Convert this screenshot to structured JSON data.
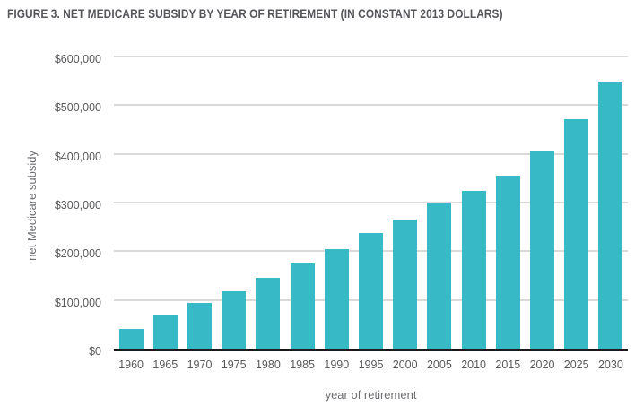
{
  "figure": {
    "title": "FIGURE 3. NET MEDICARE SUBSIDY BY YEAR OF RETIREMENT (IN CONSTANT 2013 DOLLARS)"
  },
  "colors": {
    "bar": "#38b9c6",
    "gridline": "#d9d9d9",
    "axis_line": "#1a1a1a",
    "tick_label": "#58595b",
    "axis_title": "#6d6e71",
    "figure_title": "#55565a"
  },
  "chart_data": {
    "type": "bar",
    "title": "FIGURE 3. NET MEDICARE SUBSIDY BY YEAR OF RETIREMENT (IN CONSTANT 2013 DOLLARS)",
    "xlabel": "year of retirement",
    "ylabel": "net Medicare subsidy",
    "categories": [
      "1960",
      "1965",
      "1970",
      "1975",
      "1980",
      "1985",
      "1990",
      "1995",
      "2000",
      "2005",
      "2010",
      "2015",
      "2020",
      "2025",
      "2030"
    ],
    "values": [
      40000,
      68000,
      93000,
      118000,
      146000,
      175000,
      205000,
      238000,
      265000,
      300000,
      324000,
      356000,
      406000,
      472000,
      549000
    ],
    "ylim": [
      0,
      600000
    ],
    "y_ticks": [
      {
        "value": 0,
        "label": "$0"
      },
      {
        "value": 100000,
        "label": "$100,000"
      },
      {
        "value": 200000,
        "label": "$200,000"
      },
      {
        "value": 300000,
        "label": "$300,000"
      },
      {
        "value": 400000,
        "label": "$400,000"
      },
      {
        "value": 500000,
        "label": "$500,000"
      },
      {
        "value": 600000,
        "label": "$600,000"
      }
    ],
    "grid": "horizontal",
    "legend": "none"
  }
}
